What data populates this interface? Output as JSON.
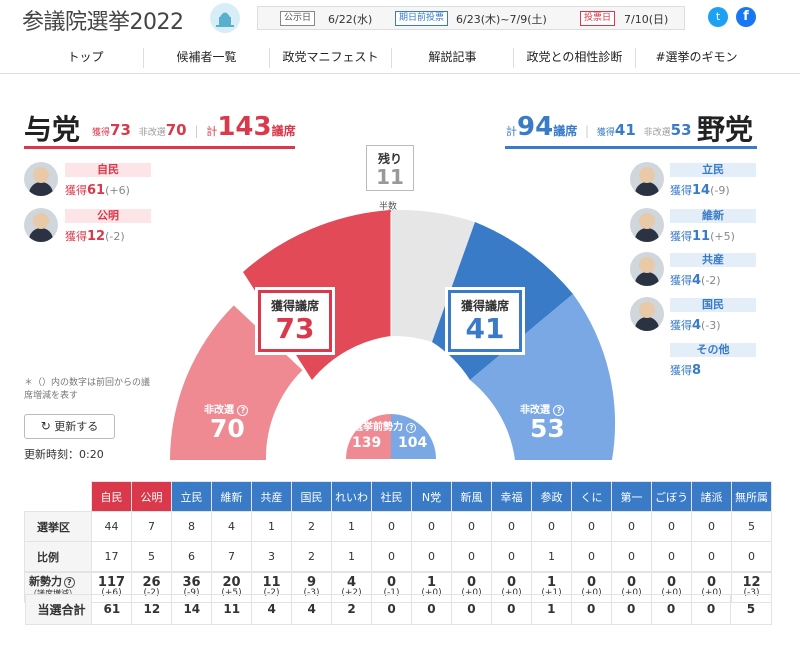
{
  "header": {
    "title": "参議院選挙2022",
    "schedule": [
      {
        "tag": "公示日",
        "date": "6/22(水)",
        "color": "#555"
      },
      {
        "tag": "期日前投票",
        "date": "6/23(木)~7/9(土)",
        "color": "#3a7bc8"
      },
      {
        "tag": "投票日",
        "date": "7/10(日)",
        "color": "#d9394a"
      }
    ],
    "twitter": "t",
    "facebook": "f"
  },
  "nav": [
    "トップ",
    "候補者一覧",
    "政党マニフェスト",
    "解説記事",
    "政党との相性診断",
    "#選挙のギモン"
  ],
  "ruling": {
    "title": "与党",
    "won_label": "獲得",
    "won": "73",
    "noncontest_label": "非改選",
    "noncontest": "70",
    "total_prefix": "計",
    "total": "143",
    "total_suffix": "議席",
    "color": "#d9394a",
    "parties": [
      {
        "name": "自民",
        "won_label": "獲得",
        "won": "61",
        "diff": "(+6)"
      },
      {
        "name": "公明",
        "won_label": "獲得",
        "won": "12",
        "diff": "(-2)"
      }
    ]
  },
  "opposition": {
    "title": "野党",
    "won_label": "獲得",
    "won": "41",
    "noncontest_label": "非改選",
    "noncontest": "53",
    "total_prefix": "計",
    "total": "94",
    "total_suffix": "議席",
    "color": "#3a7bc8",
    "parties": [
      {
        "name": "立民",
        "won_label": "獲得",
        "won": "14",
        "diff": "(-9)"
      },
      {
        "name": "維新",
        "won_label": "獲得",
        "won": "11",
        "diff": "(+5)"
      },
      {
        "name": "共産",
        "won_label": "獲得",
        "won": "4",
        "diff": "(-2)"
      },
      {
        "name": "国民",
        "won_label": "獲得",
        "won": "4",
        "diff": "(-3)"
      },
      {
        "name": "その他",
        "won_label": "獲得",
        "won": "8",
        "diff": ""
      }
    ]
  },
  "chart": {
    "remaining_label": "残り",
    "remaining": "11",
    "half_label": "半数",
    "ruling_won_label": "獲得議席",
    "ruling_won": "73",
    "ruling_noncontest_label": "非改選",
    "ruling_noncontest": "70",
    "opp_won_label": "獲得議席",
    "opp_won": "41",
    "opp_noncontest_label": "非改選",
    "opp_noncontest": "53",
    "pre_label": "選挙前勢力",
    "pre_ruling": "139",
    "pre_opp": "104"
  },
  "note": "＊（）内の数字は前回からの議席増減を表す",
  "refresh_label": "更新する",
  "updated": "更新時刻：0:20",
  "table": {
    "headers": [
      {
        "name": "自民",
        "color": "#d9394a"
      },
      {
        "name": "公明",
        "color": "#d9394a"
      },
      {
        "name": "立民",
        "color": "#3a7bc8"
      },
      {
        "name": "維新",
        "color": "#3a7bc8"
      },
      {
        "name": "共産",
        "color": "#3a7bc8"
      },
      {
        "name": "国民",
        "color": "#3a7bc8"
      },
      {
        "name": "れいわ",
        "color": "#3a7bc8"
      },
      {
        "name": "社民",
        "color": "#3a7bc8"
      },
      {
        "name": "N党",
        "color": "#3a7bc8"
      },
      {
        "name": "新風",
        "color": "#3a7bc8"
      },
      {
        "name": "幸福",
        "color": "#3a7bc8"
      },
      {
        "name": "参政",
        "color": "#3a7bc8"
      },
      {
        "name": "くに",
        "color": "#3a7bc8"
      },
      {
        "name": "第一",
        "color": "#3a7bc8"
      },
      {
        "name": "ごぼう",
        "color": "#3a7bc8"
      },
      {
        "name": "諸派",
        "color": "#3a7bc8"
      },
      {
        "name": "無所属",
        "color": "#3a7bc8"
      }
    ],
    "rows": [
      {
        "label": "選挙区",
        "values": [
          "44",
          "7",
          "8",
          "4",
          "1",
          "2",
          "1",
          "0",
          "0",
          "0",
          "0",
          "0",
          "0",
          "0",
          "0",
          "0",
          "5"
        ]
      },
      {
        "label": "比例",
        "values": [
          "17",
          "5",
          "6",
          "7",
          "3",
          "2",
          "1",
          "0",
          "0",
          "0",
          "0",
          "1",
          "0",
          "0",
          "0",
          "0",
          "0"
        ]
      },
      {
        "label": "当選合計",
        "values": [
          "61",
          "12",
          "14",
          "11",
          "4",
          "4",
          "2",
          "0",
          "0",
          "0",
          "0",
          "1",
          "0",
          "0",
          "0",
          "0",
          "5"
        ]
      }
    ],
    "new_label": "新勢力",
    "new_sub": "（議席増減）",
    "new": [
      [
        "117",
        "(+6)"
      ],
      [
        "26",
        "(-2)"
      ],
      [
        "36",
        "(-9)"
      ],
      [
        "20",
        "(+5)"
      ],
      [
        "11",
        "(-2)"
      ],
      [
        "9",
        "(-3)"
      ],
      [
        "4",
        "(+2)"
      ],
      [
        "0",
        "(-1)"
      ],
      [
        "1",
        "(+0)"
      ],
      [
        "0",
        "(+0)"
      ],
      [
        "0",
        "(+0)"
      ],
      [
        "1",
        "(+1)"
      ],
      [
        "0",
        "(+0)"
      ],
      [
        "0",
        "(+0)"
      ],
      [
        "0",
        "(+0)"
      ],
      [
        "0",
        "(+0)"
      ],
      [
        "12",
        "(-3)"
      ]
    ]
  }
}
